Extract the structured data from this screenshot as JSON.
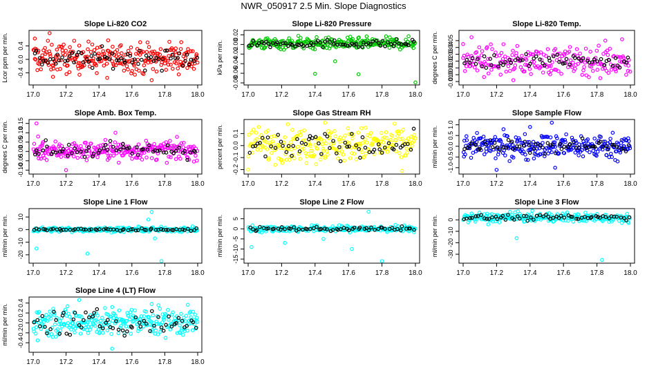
{
  "page_title": "NWR_050917  2.5 Min. Slope Diagnostics",
  "chart_data": [
    {
      "type": "scatter",
      "title": "Slope Li-820 CO2",
      "ylabel": "Lcor ppm per min.",
      "xlim": [
        17.0,
        18.0
      ],
      "ylim": [
        -0.7,
        0.8
      ],
      "xticks": [
        "17.0",
        "17.2",
        "17.4",
        "17.6",
        "17.8",
        "18.0"
      ],
      "yticks": [
        -0.4,
        0.0,
        0.4
      ],
      "ytick_labels": [
        "-0.4",
        "0.0",
        "0.4"
      ],
      "colors": {
        "main": "#ff0000",
        "overlay": "#000000"
      },
      "series": [
        {
          "color": "main",
          "spread": 0.22,
          "center": 0.05,
          "points": 260,
          "sample": [
            [
              17.01,
              0.62
            ],
            [
              17.03,
              -0.12
            ],
            [
              17.1,
              0.78
            ],
            [
              17.12,
              -0.52
            ],
            [
              17.22,
              -0.38
            ],
            [
              17.28,
              0.41
            ],
            [
              17.45,
              -0.55
            ],
            [
              17.72,
              -0.62
            ],
            [
              17.75,
              -0.36
            ],
            [
              17.9,
              0.51
            ]
          ]
        },
        {
          "color": "overlay",
          "spread": 0.14,
          "center": 0.02,
          "points": 70
        }
      ]
    },
    {
      "type": "scatter",
      "title": "Slope Li-820 Pressure",
      "ylabel": "kPa per min.",
      "xlim": [
        17.0,
        18.0
      ],
      "ylim": [
        -0.08,
        0.025
      ],
      "xticks": [
        "17.0",
        "17.2",
        "17.4",
        "17.6",
        "17.8",
        "18.0"
      ],
      "yticks": [
        -0.08,
        -0.06,
        -0.04,
        -0.02,
        0.0,
        0.02
      ],
      "ytick_labels": [
        "-0.08",
        "-0.06",
        "-0.04",
        "-0.02",
        "0.00",
        "0.02"
      ],
      "colors": {
        "main": "#00c800",
        "overlay": "#000000"
      },
      "series": [
        {
          "color": "main",
          "spread": 0.006,
          "center": 0.002,
          "points": 260,
          "sample": [
            [
              17.4,
              -0.061
            ],
            [
              17.66,
              -0.062
            ],
            [
              18.0,
              -0.079
            ],
            [
              17.52,
              -0.035
            ],
            [
              17.3,
              0.018
            ]
          ]
        },
        {
          "color": "overlay",
          "spread": 0.004,
          "center": 0.002,
          "points": 70
        }
      ]
    },
    {
      "type": "scatter",
      "title": "Slope Li-820 Temp.",
      "ylabel": "degrees C per min.",
      "xlim": [
        17.0,
        18.0
      ],
      "ylim": [
        -0.012,
        0.062
      ],
      "xticks": [
        "17.0",
        "17.2",
        "17.4",
        "17.6",
        "17.8",
        "18.0"
      ],
      "yticks": [
        -0.01,
        0.0,
        0.01,
        0.02,
        0.03,
        0.04,
        0.05
      ],
      "ytick_labels": [
        "-0.01",
        "0.00",
        "0.01",
        "0.02",
        "0.03",
        "0.04",
        "0.05"
      ],
      "colors": {
        "main": "#ff00ff",
        "overlay": "#000000"
      },
      "series": [
        {
          "color": "main",
          "spread": 0.01,
          "center": 0.02,
          "points": 220,
          "sample": [
            [
              17.0,
              0.045
            ],
            [
              17.05,
              0.055
            ],
            [
              17.3,
              -0.008
            ],
            [
              17.85,
              0.05
            ],
            [
              17.82,
              -0.005
            ],
            [
              17.95,
              0.052
            ]
          ]
        },
        {
          "color": "overlay",
          "spread": 0.006,
          "center": 0.02,
          "points": 60
        }
      ]
    },
    {
      "type": "scatter",
      "title": "Slope Amb. Box Temp.",
      "ylabel": "degrees C per min.",
      "xlim": [
        17.0,
        18.0
      ],
      "ylim": [
        -0.11,
        0.16
      ],
      "xticks": [
        "17.0",
        "17.2",
        "17.4",
        "17.6",
        "17.8",
        "18.0"
      ],
      "yticks": [
        -0.1,
        -0.05,
        0.0,
        0.05,
        0.1,
        0.15
      ],
      "ytick_labels": [
        "-0.10",
        "-0.05",
        "0.00",
        "0.05",
        "0.10",
        "0.15"
      ],
      "colors": {
        "main": "#ff00ff",
        "overlay": "#000000"
      },
      "series": [
        {
          "color": "main",
          "spread": 0.025,
          "center": 0.005,
          "points": 260,
          "sample": [
            [
              17.02,
              0.15
            ],
            [
              17.03,
              0.08
            ],
            [
              17.06,
              0.05
            ],
            [
              17.5,
              0.1
            ],
            [
              17.52,
              -0.06
            ],
            [
              17.2,
              -0.1
            ]
          ]
        },
        {
          "color": "overlay",
          "spread": 0.02,
          "center": 0.005,
          "points": 60
        }
      ]
    },
    {
      "type": "scatter",
      "title": "Slope Gas Stream RH",
      "ylabel": "percent per min.",
      "xlim": [
        17.0,
        18.0
      ],
      "ylim": [
        -0.22,
        0.2
      ],
      "xticks": [
        "17.0",
        "17.2",
        "17.4",
        "17.6",
        "17.8",
        "18.0"
      ],
      "yticks": [
        -0.2,
        -0.1,
        0.0,
        0.1
      ],
      "ytick_labels": [
        "-0.2",
        "-0.1",
        "0.0",
        "0.1"
      ],
      "colors": {
        "main": "#ffff00",
        "overlay": "#000000"
      },
      "series": [
        {
          "color": "main",
          "spread": 0.07,
          "center": 0.01,
          "points": 260,
          "sample": [
            [
              17.46,
              0.19
            ],
            [
              17.0,
              -0.2
            ],
            [
              17.92,
              -0.21
            ]
          ]
        },
        {
          "color": "overlay",
          "spread": 0.05,
          "center": 0.0,
          "points": 60
        }
      ]
    },
    {
      "type": "scatter",
      "title": "Slope Sample Flow",
      "ylabel": "ml/min per min.",
      "xlim": [
        17.0,
        18.0
      ],
      "ylim": [
        -1.2,
        1.15
      ],
      "xticks": [
        "17.0",
        "17.2",
        "17.4",
        "17.6",
        "17.8",
        "18.0"
      ],
      "yticks": [
        -1.0,
        -0.5,
        0.0,
        0.5,
        1.0
      ],
      "ytick_labels": [
        "-1.0",
        "-0.5",
        "0.0",
        "0.5",
        "1.0"
      ],
      "colors": {
        "main": "#0000ff",
        "overlay": "#000000"
      },
      "series": [
        {
          "color": "main",
          "spread": 0.28,
          "center": 0.0,
          "points": 280,
          "sample": [
            [
              17.53,
              1.1
            ],
            [
              17.55,
              -1.0
            ],
            [
              17.2,
              -1.1
            ],
            [
              17.4,
              0.9
            ]
          ]
        },
        {
          "color": "overlay",
          "spread": 0.16,
          "center": 0.0,
          "points": 60
        }
      ]
    },
    {
      "type": "scatter",
      "title": "Slope Line 1 Flow",
      "ylabel": "ml/min per min.",
      "xlim": [
        17.0,
        18.0
      ],
      "ylim": [
        -25,
        15
      ],
      "xticks": [
        "17.0",
        "17.2",
        "17.4",
        "17.6",
        "17.8",
        "18.0"
      ],
      "yticks": [
        -20,
        -10,
        0,
        10
      ],
      "ytick_labels": [
        "-20",
        "-10",
        "0",
        "10"
      ],
      "colors": {
        "main": "#00ffff",
        "overlay": "#000000"
      },
      "series": [
        {
          "color": "main",
          "spread": 0.9,
          "center": 0.0,
          "points": 240,
          "sample": [
            [
              17.02,
              -15
            ],
            [
              17.33,
              -19
            ],
            [
              17.7,
              8
            ],
            [
              17.72,
              14
            ],
            [
              17.78,
              -25
            ],
            [
              17.74,
              -7
            ]
          ]
        },
        {
          "color": "overlay",
          "spread": 0.5,
          "center": 0.0,
          "points": 60
        }
      ]
    },
    {
      "type": "scatter",
      "title": "Slope Line 2 Flow",
      "ylabel": "ml/min per min.",
      "xlim": [
        17.0,
        18.0
      ],
      "ylim": [
        -16,
        9
      ],
      "xticks": [
        "17.0",
        "17.2",
        "17.4",
        "17.6",
        "17.8",
        "18.0"
      ],
      "yticks": [
        -15,
        -10,
        -5,
        0,
        5
      ],
      "ytick_labels": [
        "-15",
        "-10",
        "-5",
        "0",
        "5"
      ],
      "colors": {
        "main": "#00ffff",
        "overlay": "#000000"
      },
      "series": [
        {
          "color": "main",
          "spread": 0.8,
          "center": 0.0,
          "points": 240,
          "sample": [
            [
              17.02,
              -9
            ],
            [
              17.22,
              -7
            ],
            [
              17.62,
              -10
            ],
            [
              17.72,
              8.5
            ],
            [
              17.8,
              -16
            ],
            [
              17.45,
              -5
            ]
          ]
        },
        {
          "color": "overlay",
          "spread": 0.5,
          "center": 0.0,
          "points": 60
        }
      ]
    },
    {
      "type": "scatter",
      "title": "Slope Line 3 Flow",
      "ylabel": "ml/min per min.",
      "xlim": [
        17.0,
        18.0
      ],
      "ylim": [
        -36,
        8
      ],
      "xticks": [
        "17.0",
        "17.2",
        "17.4",
        "17.6",
        "17.8",
        "18.0"
      ],
      "yticks": [
        -30,
        -20,
        -10,
        0
      ],
      "ytick_labels": [
        "-30",
        "-20",
        "-10",
        "0"
      ],
      "colors": {
        "main": "#00ffff",
        "overlay": "#000000"
      },
      "series": [
        {
          "color": "main",
          "spread": 2.0,
          "center": 2.0,
          "points": 240,
          "sample": [
            [
              17.32,
              -16
            ],
            [
              17.83,
              -35
            ],
            [
              17.28,
              7
            ],
            [
              17.15,
              -4
            ]
          ]
        },
        {
          "color": "overlay",
          "spread": 1.2,
          "center": 2.0,
          "points": 60
        }
      ]
    },
    {
      "type": "scatter",
      "title": "Slope Line 4 (LT) Flow",
      "ylabel": "ml/min per min.",
      "xlim": [
        17.0,
        18.0
      ],
      "ylim": [
        -0.55,
        0.48
      ],
      "xticks": [
        "17.0",
        "17.2",
        "17.4",
        "17.6",
        "17.8",
        "18.0"
      ],
      "yticks": [
        -0.4,
        -0.2,
        0.0,
        0.2,
        0.4
      ],
      "ytick_labels": [
        "-0.4",
        "-0.2",
        "0.0",
        "0.2",
        "0.4"
      ],
      "colors": {
        "main": "#00ffff",
        "overlay": "#000000"
      },
      "series": [
        {
          "color": "main",
          "spread": 0.14,
          "center": 0.02,
          "points": 280,
          "sample": [
            [
              17.28,
              0.46
            ],
            [
              17.48,
              -0.52
            ],
            [
              17.72,
              0.38
            ]
          ]
        },
        {
          "color": "overlay",
          "spread": 0.12,
          "center": 0.0,
          "points": 60
        }
      ]
    }
  ]
}
